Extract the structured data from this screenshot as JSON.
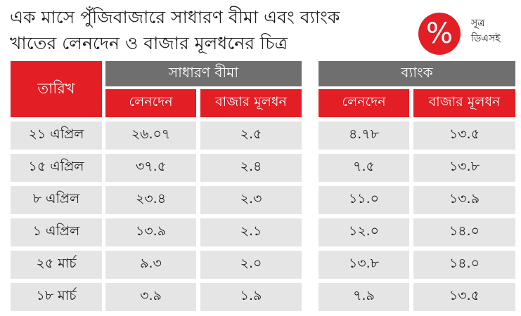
{
  "title": {
    "line1": "এক মাসে পুঁজিবাজারে সাধারণ বীমা এবং ব্যাংক",
    "line2": "খাতের লেনদেন ও বাজার মূলধনের চিত্র"
  },
  "badge": {
    "icon": "percent-icon",
    "symbol": "%",
    "color": "#e31e24"
  },
  "source": {
    "label": "সূত্র",
    "value": "ডিএসই"
  },
  "table": {
    "date_header": "তারিখ",
    "groups": [
      {
        "name": "সাধারণ বীমা",
        "columns": [
          "লেনদেন",
          "বাজার মূলধন"
        ]
      },
      {
        "name": "ব্যাংক",
        "columns": [
          "লেনদেন",
          "বাজার মূলধন"
        ]
      }
    ],
    "rows": [
      {
        "date": "২১ এপ্রিল",
        "ins_turnover": "২৬.০৭",
        "ins_cap": "২.৫",
        "bank_turnover": "৪.৭৮",
        "bank_cap": "১৩.৫"
      },
      {
        "date": "১৫ এপ্রিল",
        "ins_turnover": "৩৭.৫",
        "ins_cap": "২.৪",
        "bank_turnover": "৭.৫",
        "bank_cap": "১৩.৮"
      },
      {
        "date": "৮ এপ্রিল",
        "ins_turnover": "২৩.৪",
        "ins_cap": "২.৩",
        "bank_turnover": "১১.০",
        "bank_cap": "১৩.৯"
      },
      {
        "date": "১ এপ্রিল",
        "ins_turnover": "১৩.৯",
        "ins_cap": "২.১",
        "bank_turnover": "১২.০",
        "bank_cap": "১৪.০"
      },
      {
        "date": "২৫ মার্চ",
        "ins_turnover": "৯.৩",
        "ins_cap": "২.০",
        "bank_turnover": "১৩.৮",
        "bank_cap": "১৪.০"
      },
      {
        "date": "১৮ মার্চ",
        "ins_turnover": "৩.৯",
        "ins_cap": "১.৯",
        "bank_turnover": "৭.৯",
        "bank_cap": "১৩.৫"
      }
    ]
  },
  "colors": {
    "accent_red": "#e31e24",
    "group_gray": "#6f6f70",
    "cell_gray": "#e5e5e6"
  }
}
